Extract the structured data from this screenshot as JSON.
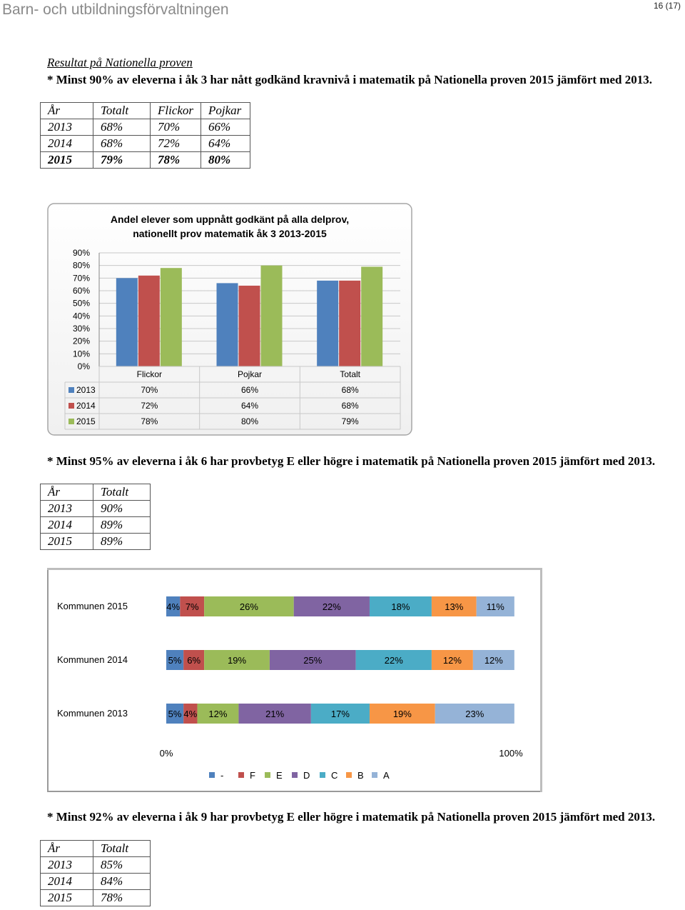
{
  "header": {
    "title": "Barn- och utbildningsförvaltningen",
    "page": "16 (17)"
  },
  "intro": "Resultat på Nationella proven",
  "section3": {
    "text": "* Minst 90% av eleverna i åk 3 har nått godkänd kravnivå i matematik på Nationella proven 2015 jämfört med 2013.",
    "table": {
      "headers": [
        "År",
        "Totalt",
        "Flickor",
        "Pojkar"
      ],
      "rows": [
        [
          "2013",
          "68%",
          "70%",
          "66%"
        ],
        [
          "2014",
          "68%",
          "72%",
          "64%"
        ],
        [
          "2015",
          "79%",
          "78%",
          "80%"
        ]
      ]
    }
  },
  "section6": {
    "text": "* Minst 95% av eleverna i åk 6 har provbetyg E eller högre i matematik på Nationella proven 2015 jämfört med 2013.",
    "table": {
      "headers": [
        "År",
        "Totalt"
      ],
      "rows": [
        [
          "2013",
          "90%"
        ],
        [
          "2014",
          "89%"
        ],
        [
          "2015",
          "89%"
        ]
      ]
    }
  },
  "section9": {
    "text": "* Minst 92% av eleverna i åk 9 har provbetyg E eller högre i matematik på Nationella proven 2015 jämfört med 2013.",
    "table": {
      "headers": [
        "År",
        "Totalt"
      ],
      "rows": [
        [
          "2013",
          "85%"
        ],
        [
          "2014",
          "84%"
        ],
        [
          "2015",
          "78%"
        ]
      ]
    }
  },
  "chart_data": [
    {
      "type": "bar",
      "title": "Andel elever som uppnått godkänt på alla delprov, nationellt prov matematik åk 3 2013-2015",
      "categories": [
        "Flickor",
        "Pojkar",
        "Totalt"
      ],
      "series": [
        {
          "name": "2013",
          "values": [
            70,
            66,
            68
          ],
          "labels": [
            "70%",
            "66%",
            "68%"
          ],
          "color": "#4f81bd"
        },
        {
          "name": "2014",
          "values": [
            72,
            64,
            68
          ],
          "labels": [
            "72%",
            "64%",
            "68%"
          ],
          "color": "#c0504d"
        },
        {
          "name": "2015",
          "values": [
            78,
            80,
            79
          ],
          "labels": [
            "78%",
            "80%",
            "79%"
          ],
          "color": "#9bbb59"
        }
      ],
      "ylim": [
        0,
        90
      ],
      "yticks": [
        "0%",
        "10%",
        "20%",
        "30%",
        "40%",
        "50%",
        "60%",
        "70%",
        "80%",
        "90%"
      ],
      "grid": true,
      "legend": "data-table"
    },
    {
      "type": "bar",
      "stacked": true,
      "orientation": "horizontal",
      "categories": [
        "Kommunen 2015",
        "Kommunen 2014",
        "Kommunen 2013"
      ],
      "series": [
        {
          "name": "-",
          "values": [
            4,
            5,
            5
          ],
          "color": "#4f81bd"
        },
        {
          "name": "F",
          "values": [
            7,
            6,
            4
          ],
          "color": "#c0504d"
        },
        {
          "name": "E",
          "values": [
            26,
            19,
            12
          ],
          "color": "#9bbb59"
        },
        {
          "name": "D",
          "values": [
            22,
            25,
            21
          ],
          "color": "#8064a2"
        },
        {
          "name": "C",
          "values": [
            18,
            22,
            17
          ],
          "color": "#4bacc6"
        },
        {
          "name": "B",
          "values": [
            13,
            12,
            19
          ],
          "color": "#f79646"
        },
        {
          "name": "A",
          "values": [
            11,
            12,
            23
          ],
          "color": "#95b3d7"
        }
      ],
      "xticks": [
        "0%",
        "100%"
      ],
      "legend": "bottom"
    }
  ]
}
